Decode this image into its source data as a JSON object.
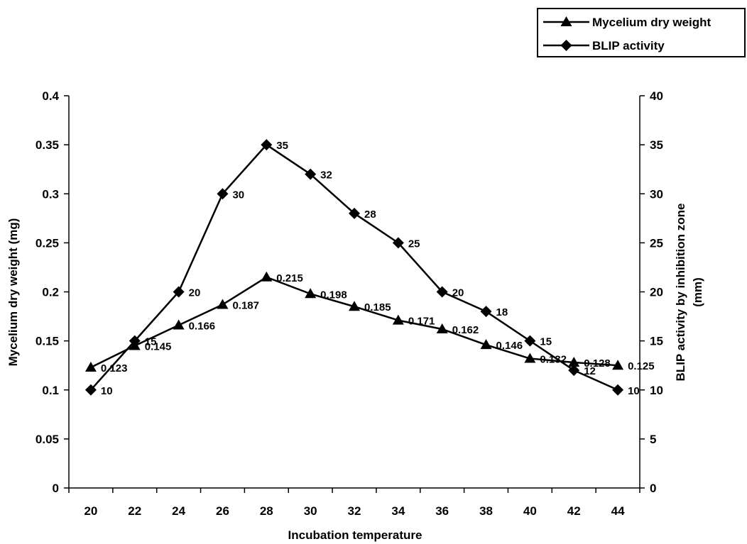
{
  "chart_data": {
    "type": "line",
    "categories": [
      "20",
      "22",
      "24",
      "26",
      "28",
      "30",
      "32",
      "34",
      "36",
      "38",
      "40",
      "42",
      "44"
    ],
    "series": [
      {
        "name": "Mycelium dry weight",
        "axis": "left",
        "marker": "triangle",
        "values": [
          0.123,
          0.145,
          0.166,
          0.187,
          0.215,
          0.198,
          0.185,
          0.171,
          0.162,
          0.146,
          0.132,
          0.128,
          0.125
        ],
        "labels": [
          "0.123",
          "0.145",
          "0.166",
          "0.187",
          "0.215",
          "0.198",
          "0.185",
          "0.171",
          "0.162",
          "0.146",
          "0.132",
          "0.128",
          "0.125"
        ]
      },
      {
        "name": "BLIP activity",
        "axis": "right",
        "marker": "diamond",
        "values": [
          10,
          15,
          20,
          30,
          35,
          32,
          28,
          25,
          20,
          18,
          15,
          12,
          10
        ],
        "labels": [
          "10",
          "15",
          "20",
          "30",
          "35",
          "32",
          "28",
          "25",
          "20",
          "18",
          "15",
          "12",
          "10"
        ]
      }
    ],
    "xlabel": "Incubation temperature",
    "ylabel": "Mycelium dry weight (mg)",
    "y2label_lines": [
      "BLIP activity by inhibition zone",
      "(mm)"
    ],
    "ylim": [
      0,
      0.4
    ],
    "y_ticks": [
      "0",
      "0.05",
      "0.1",
      "0.15",
      "0.2",
      "0.25",
      "0.3",
      "0.35",
      "0.4"
    ],
    "y2lim": [
      0,
      40
    ],
    "y2_ticks": [
      "0",
      "5",
      "10",
      "15",
      "20",
      "25",
      "30",
      "35",
      "40"
    ],
    "grid": false,
    "legend_position": "top-right",
    "line_color": "#000000"
  }
}
